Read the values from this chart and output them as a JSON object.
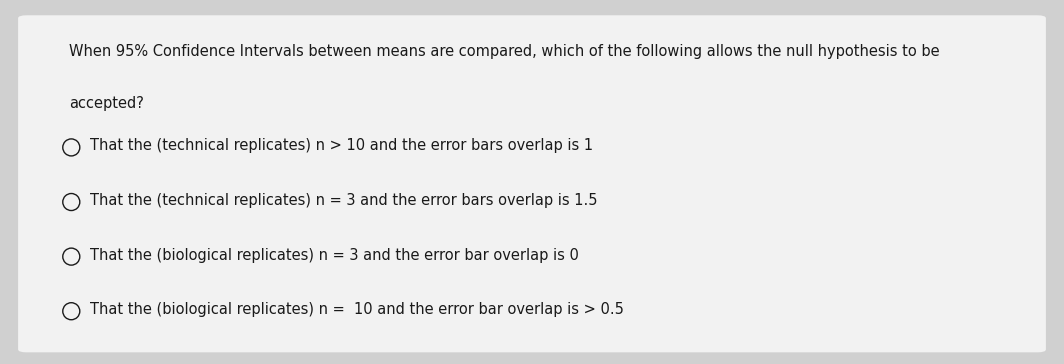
{
  "background_color": "#d0d0d0",
  "card_color": "#f2f2f2",
  "question_line1": "When 95% Confidence Intervals between means are compared, which of the following allows the null hypothesis to be",
  "question_line2": "accepted?",
  "options": [
    "That the (technical replicates) n > 10 and the error bars overlap is 1",
    "That the (technical replicates) n = 3 and the error bars overlap is 1.5",
    "That the (biological replicates) n = 3 and the error bar overlap is 0",
    "That the (biological replicates) n =  10 and the error bar overlap is > 0.5"
  ],
  "text_color": "#1a1a1a",
  "font_size_question": 10.5,
  "font_size_options": 10.5,
  "fig_width": 10.64,
  "fig_height": 3.64,
  "dpi": 100
}
